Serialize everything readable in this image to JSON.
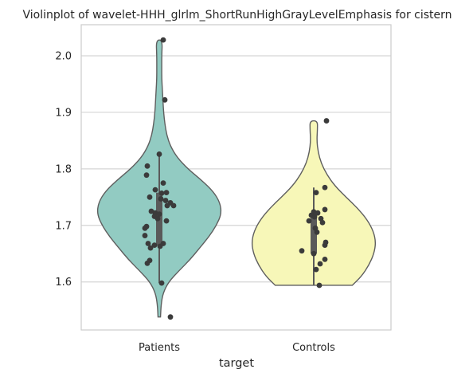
{
  "chart_data": {
    "type": "violin",
    "title": "Violinplot of wavelet-HHH_glrlm_ShortRunHighGrayLevelEmphasis for cistern",
    "xlabel": "target",
    "ylabel": "",
    "categories": [
      "Patients",
      "Controls"
    ],
    "ylim": [
      1.515,
      2.055
    ],
    "yticks": [
      1.6,
      1.7,
      1.8,
      1.9,
      2.0
    ],
    "ytick_labels": [
      "1.6",
      "1.7",
      "1.8",
      "1.9",
      "2.0"
    ],
    "grid": "horizontal",
    "colors": {
      "Patients": "#92cbc2",
      "Controls": "#f7f7b8",
      "outline": "#5f5f5f",
      "points": "#3b3b3b",
      "box": "#5a5a5a"
    },
    "series": [
      {
        "category": "Patients",
        "min": 1.538,
        "max": 2.028,
        "box": {
          "q1": 1.664,
          "median": 1.718,
          "q3": 1.758,
          "whisker_low": 1.598,
          "whisker_high": 1.826
        },
        "density": [
          [
            1.538,
            0.02
          ],
          [
            1.56,
            0.03
          ],
          [
            1.58,
            0.06
          ],
          [
            1.6,
            0.15
          ],
          [
            1.62,
            0.32
          ],
          [
            1.64,
            0.5
          ],
          [
            1.66,
            0.65
          ],
          [
            1.68,
            0.8
          ],
          [
            1.7,
            0.92
          ],
          [
            1.72,
            1.0
          ],
          [
            1.74,
            0.98
          ],
          [
            1.76,
            0.87
          ],
          [
            1.78,
            0.68
          ],
          [
            1.8,
            0.46
          ],
          [
            1.82,
            0.29
          ],
          [
            1.84,
            0.18
          ],
          [
            1.86,
            0.12
          ],
          [
            1.88,
            0.09
          ],
          [
            1.9,
            0.07
          ],
          [
            1.92,
            0.06
          ],
          [
            1.94,
            0.05
          ],
          [
            1.96,
            0.04
          ],
          [
            1.98,
            0.04
          ],
          [
            2.0,
            0.04
          ],
          [
            2.028,
            0.05
          ]
        ],
        "points": [
          [
            2.028,
            0.05
          ],
          [
            1.922,
            0.07
          ],
          [
            1.826,
            0.0
          ],
          [
            1.805,
            -0.15
          ],
          [
            1.789,
            -0.16
          ],
          [
            1.775,
            0.05
          ],
          [
            1.763,
            -0.05
          ],
          [
            1.757,
            0.03
          ],
          [
            1.758,
            0.09
          ],
          [
            1.75,
            -0.12
          ],
          [
            1.747,
            0.02
          ],
          [
            1.744,
            0.08
          ],
          [
            1.74,
            0.14
          ],
          [
            1.735,
            0.1
          ],
          [
            1.735,
            0.18
          ],
          [
            1.725,
            -0.1
          ],
          [
            1.722,
            -0.05
          ],
          [
            1.72,
            0.0
          ],
          [
            1.716,
            -0.06
          ],
          [
            1.712,
            -0.02
          ],
          [
            1.708,
            0.09
          ],
          [
            1.698,
            -0.16
          ],
          [
            1.695,
            -0.18
          ],
          [
            1.682,
            -0.18
          ],
          [
            1.668,
            -0.14
          ],
          [
            1.665,
            -0.06
          ],
          [
            1.663,
            0.01
          ],
          [
            1.668,
            0.05
          ],
          [
            1.66,
            -0.11
          ],
          [
            1.638,
            -0.12
          ],
          [
            1.633,
            -0.15
          ],
          [
            1.598,
            0.03
          ],
          [
            1.538,
            0.14
          ]
        ]
      },
      {
        "category": "Controls",
        "min": 1.594,
        "max": 1.885,
        "box": {
          "q1": 1.65,
          "median": 1.695,
          "q3": 1.722,
          "whisker_low": 1.594,
          "whisker_high": 1.767
        },
        "density": [
          [
            1.594,
            0.62
          ],
          [
            1.61,
            0.77
          ],
          [
            1.63,
            0.89
          ],
          [
            1.65,
            0.97
          ],
          [
            1.67,
            1.0
          ],
          [
            1.69,
            0.96
          ],
          [
            1.71,
            0.86
          ],
          [
            1.73,
            0.71
          ],
          [
            1.75,
            0.52
          ],
          [
            1.77,
            0.34
          ],
          [
            1.79,
            0.21
          ],
          [
            1.81,
            0.12
          ],
          [
            1.83,
            0.07
          ],
          [
            1.85,
            0.05
          ],
          [
            1.87,
            0.06
          ],
          [
            1.885,
            0.06
          ]
        ],
        "points": [
          [
            1.885,
            0.16
          ],
          [
            1.767,
            0.14
          ],
          [
            1.758,
            0.03
          ],
          [
            1.728,
            0.14
          ],
          [
            1.724,
            0.0
          ],
          [
            1.722,
            0.05
          ],
          [
            1.718,
            -0.03
          ],
          [
            1.715,
            0.01
          ],
          [
            1.712,
            0.09
          ],
          [
            1.708,
            -0.06
          ],
          [
            1.705,
            0.11
          ],
          [
            1.695,
            0.02
          ],
          [
            1.688,
            0.04
          ],
          [
            1.67,
            0.15
          ],
          [
            1.665,
            0.14
          ],
          [
            1.655,
            -0.15
          ],
          [
            1.65,
            0.0
          ],
          [
            1.64,
            0.14
          ],
          [
            1.632,
            0.08
          ],
          [
            1.622,
            0.03
          ],
          [
            1.594,
            0.07
          ]
        ]
      }
    ]
  }
}
